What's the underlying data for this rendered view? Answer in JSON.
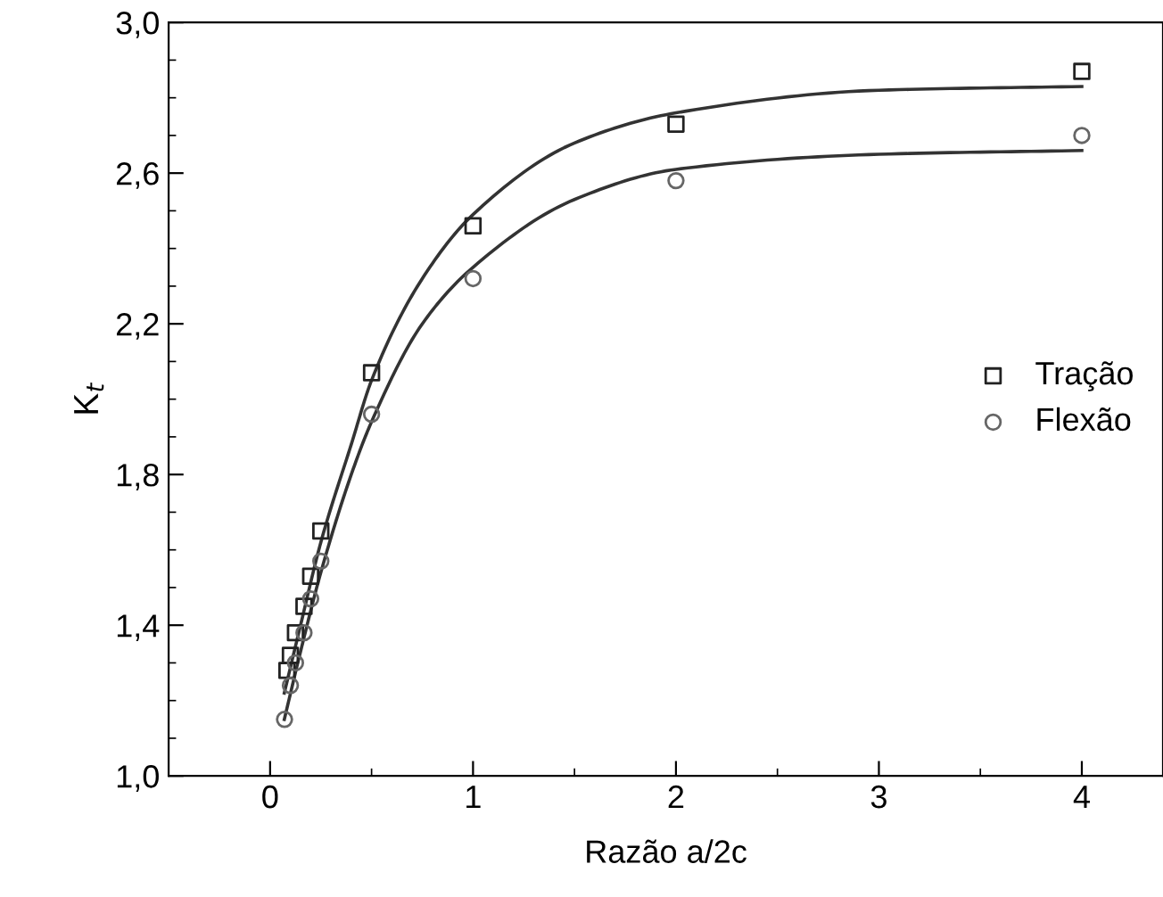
{
  "chart_data": {
    "type": "scatter",
    "xlabel": "Razão a/2c",
    "ylabel": "K$_{t}$",
    "xlim": [
      -0.5,
      4.4
    ],
    "ylim": [
      1.0,
      3.0
    ],
    "xticks": [
      0,
      1,
      2,
      3,
      4
    ],
    "yticks": [
      {
        "value": 1.0,
        "label": "1,0"
      },
      {
        "value": 1.4,
        "label": "1,4"
      },
      {
        "value": 1.8,
        "label": "1,8"
      },
      {
        "value": 2.2,
        "label": "2,2"
      },
      {
        "value": 2.6,
        "label": "2,6"
      },
      {
        "value": 3.0,
        "label": "3,0"
      }
    ],
    "legend": "center right",
    "grid": false,
    "series": [
      {
        "name": "Tração",
        "marker": "square",
        "color": "#222222",
        "x": [
          0.083,
          0.1,
          0.125,
          0.167,
          0.2,
          0.25,
          0.5,
          1,
          2,
          4
        ],
        "values": [
          1.28,
          1.32,
          1.38,
          1.45,
          1.53,
          1.65,
          2.07,
          2.46,
          2.73,
          2.87
        ]
      },
      {
        "name": "Flexão",
        "marker": "circle",
        "color": "#666666",
        "x": [
          0.071,
          0.1,
          0.125,
          0.167,
          0.2,
          0.25,
          0.5,
          1,
          2,
          4
        ],
        "values": [
          1.15,
          1.24,
          1.3,
          1.38,
          1.47,
          1.57,
          1.96,
          2.32,
          2.58,
          2.7
        ]
      },
      {
        "type": "line",
        "color": "#333333",
        "line_style": "solid",
        "x": [
          0.07,
          0.15,
          0.25,
          0.4,
          0.5,
          0.75,
          1,
          1.5,
          2,
          3,
          4
        ],
        "values": [
          1.22,
          1.4,
          1.62,
          1.88,
          2.05,
          2.32,
          2.49,
          2.68,
          2.76,
          2.82,
          2.83
        ]
      },
      {
        "type": "line",
        "color": "#333333",
        "line_style": "solid",
        "x": [
          0.07,
          0.15,
          0.25,
          0.4,
          0.5,
          0.75,
          1,
          1.5,
          2,
          3,
          4
        ],
        "values": [
          1.15,
          1.33,
          1.54,
          1.8,
          1.94,
          2.2,
          2.35,
          2.53,
          2.61,
          2.65,
          2.66
        ]
      }
    ]
  }
}
